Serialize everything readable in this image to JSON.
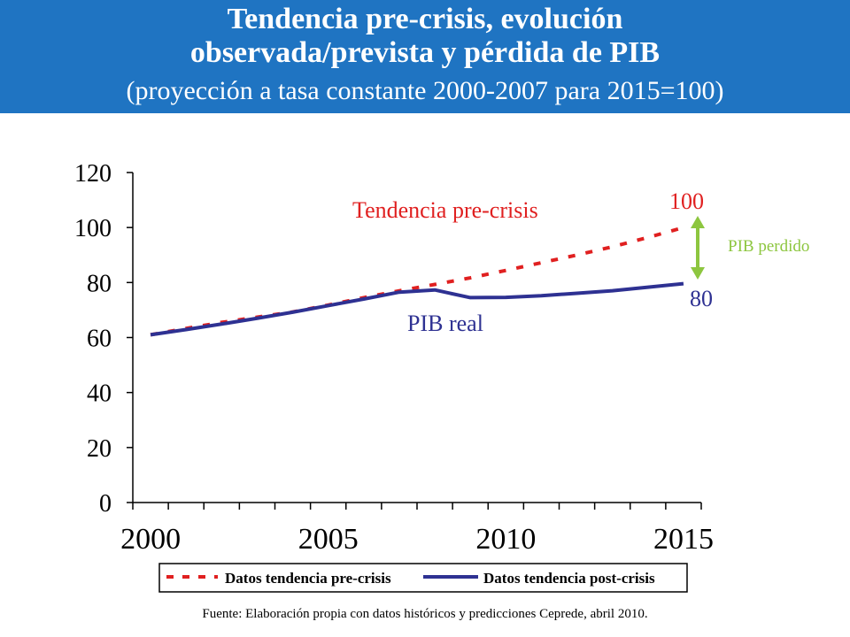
{
  "header": {
    "title_line1": "Tendencia pre-crisis, evolución",
    "title_line2": "observada/prevista y pérdida de PIB",
    "subtitle": "(proyección a tasa constante 2000-2007 para 2015=100)"
  },
  "colors": {
    "header_bg": "#1f74c2",
    "trend": "#e02020",
    "real": "#2e3192",
    "lost": "#8dc63f"
  },
  "chart_data": {
    "type": "line",
    "xlim": [
      1999.5,
      2015.5
    ],
    "ylim": [
      0,
      120
    ],
    "yticks": [
      0,
      20,
      40,
      60,
      80,
      100,
      120
    ],
    "xticks": [
      2000,
      2005,
      2010,
      2015
    ],
    "grid": false,
    "legend_position": "bottom",
    "series": [
      {
        "name": "Datos tendencia pre-crisis",
        "style": "dashed",
        "x": [
          2000,
          2001,
          2002,
          2003,
          2004,
          2005,
          2006,
          2007,
          2008,
          2009,
          2010,
          2011,
          2012,
          2013,
          2014,
          2015
        ],
        "y": [
          61.0,
          63.3,
          65.5,
          67.4,
          69.3,
          71.8,
          74.5,
          77.0,
          79.3,
          81.7,
          84.4,
          87.2,
          90.0,
          93.0,
          96.4,
          100.0
        ]
      },
      {
        "name": "Datos tendencia post-crisis",
        "style": "solid",
        "x": [
          2000,
          2001,
          2002,
          2003,
          2004,
          2005,
          2006,
          2007,
          2008,
          2009,
          2010,
          2011,
          2012,
          2013,
          2014,
          2015
        ],
        "y": [
          61.0,
          62.9,
          64.9,
          67.0,
          69.2,
          71.6,
          74.0,
          76.5,
          77.3,
          74.5,
          74.6,
          75.2,
          76.1,
          77.0,
          78.3,
          79.6
        ]
      }
    ],
    "annotations": {
      "trend_label": "Tendencia pre-crisis",
      "real_label": "PIB real",
      "end_high": "100",
      "end_low": "80",
      "lost_label": "PIB perdido"
    }
  },
  "source": "Fuente: Elaboración propia con datos históricos y predicciones Ceprede, abril 2010."
}
